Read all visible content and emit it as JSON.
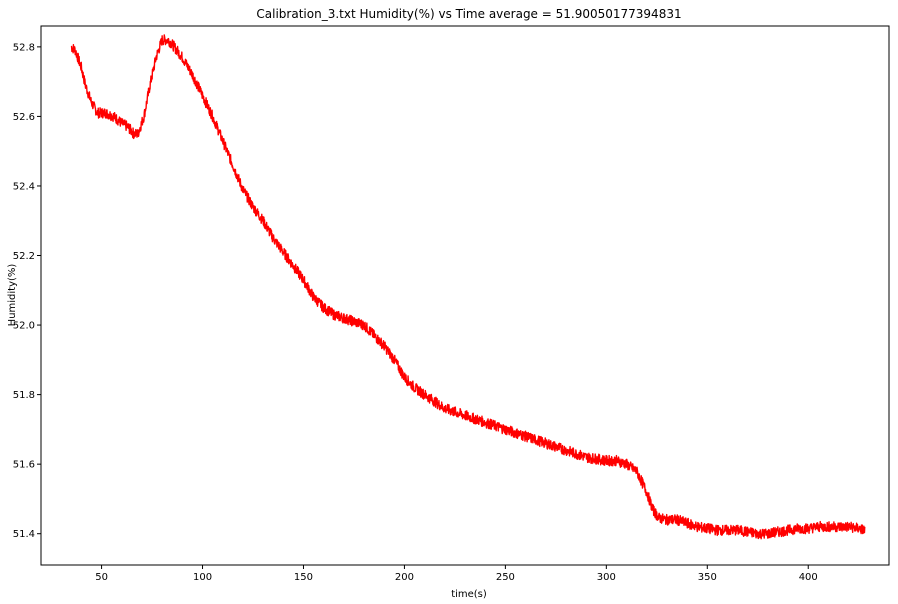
{
  "chart_data": {
    "type": "line",
    "title": "Calibration_3.txt  Humidity(%) vs Time  average = 51.90050177394831",
    "xlabel": "time(s)",
    "ylabel": "Humidity(%)",
    "xlim": [
      20,
      440
    ],
    "ylim": [
      51.31,
      52.86
    ],
    "xticks": [
      50,
      100,
      150,
      200,
      250,
      300,
      350,
      400
    ],
    "yticks": [
      51.4,
      51.6,
      51.8,
      52.0,
      52.2,
      52.4,
      52.6,
      52.8
    ],
    "grid": false,
    "line_color": "#ff0000",
    "series": [
      {
        "x": [
          35,
          37,
          40,
          42,
          45,
          48,
          52,
          56,
          60,
          63,
          66,
          68,
          71,
          74,
          77,
          80,
          83,
          86,
          90,
          95,
          100,
          105,
          110,
          115,
          120,
          125,
          130,
          135,
          140,
          145,
          150,
          155,
          160,
          165,
          170,
          175,
          180,
          185,
          190,
          195,
          200,
          205,
          210,
          215,
          220,
          225,
          230,
          235,
          240,
          245,
          250,
          255,
          260,
          265,
          270,
          275,
          280,
          285,
          290,
          295,
          300,
          305,
          310,
          315,
          320,
          323,
          326,
          330,
          335,
          340,
          345,
          350,
          355,
          360,
          365,
          370,
          375,
          380,
          385,
          390,
          395,
          400,
          405,
          410,
          415,
          420,
          425,
          428
        ],
        "y": [
          52.8,
          52.79,
          52.74,
          52.69,
          52.64,
          52.61,
          52.61,
          52.6,
          52.58,
          52.57,
          52.55,
          52.55,
          52.6,
          52.69,
          52.77,
          52.82,
          52.82,
          52.8,
          52.77,
          52.72,
          52.66,
          52.6,
          52.53,
          52.46,
          52.39,
          52.34,
          52.3,
          52.25,
          52.21,
          52.17,
          52.13,
          52.08,
          52.05,
          52.03,
          52.02,
          52.01,
          52.0,
          51.97,
          51.94,
          51.9,
          51.85,
          51.82,
          51.8,
          51.78,
          51.76,
          51.75,
          51.74,
          51.73,
          51.72,
          51.71,
          51.7,
          51.69,
          51.68,
          51.67,
          51.66,
          51.65,
          51.64,
          51.63,
          51.62,
          51.615,
          51.61,
          51.61,
          51.6,
          51.58,
          51.52,
          51.47,
          51.445,
          51.44,
          51.44,
          51.43,
          51.42,
          51.415,
          51.41,
          51.41,
          51.41,
          51.405,
          51.4,
          51.4,
          51.405,
          51.41,
          51.415,
          51.415,
          51.42,
          51.42,
          51.42,
          51.42,
          51.415,
          51.41
        ]
      }
    ]
  }
}
